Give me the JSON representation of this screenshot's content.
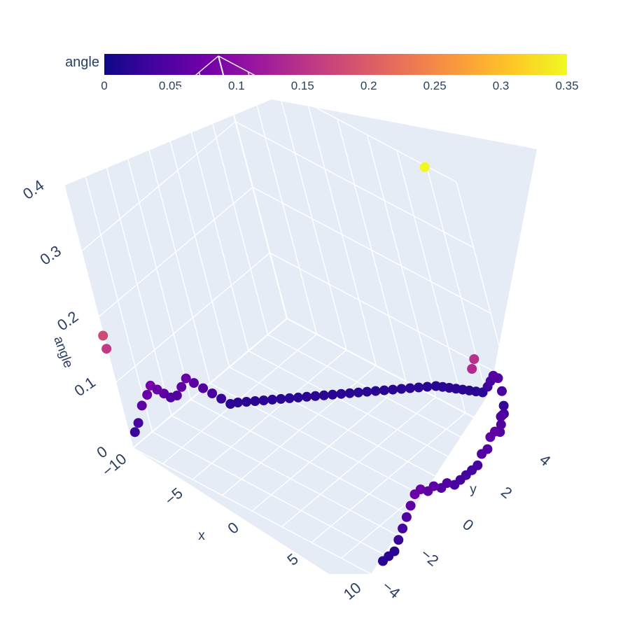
{
  "chart_data": {
    "type": "scatter3d",
    "colorbar": {
      "title": "angle",
      "range": [
        0,
        0.35
      ],
      "ticks": [
        "0",
        "0.05",
        "0.1",
        "0.15",
        "0.2",
        "0.25",
        "0.3",
        "0.35"
      ],
      "colorscale": "plasma"
    },
    "axes": {
      "x": {
        "title": "x",
        "ticks": [
          "−10",
          "−5",
          "0",
          "5",
          "10"
        ]
      },
      "y": {
        "title": "y",
        "ticks": [
          "−4",
          "−2",
          "0",
          "2",
          "4"
        ]
      },
      "z": {
        "title": "angle",
        "ticks": [
          "0",
          "0.1",
          "0.2",
          "0.3",
          "0.4"
        ]
      }
    },
    "colors": {
      "scene_bg": "#e5ecf6",
      "grid": "#ffffff",
      "text": "#2a3f5f"
    },
    "series": [
      {
        "segment": "horizontal-track",
        "points": [
          [
            -9.4,
            -4.0,
            0.03
          ],
          [
            -9.3,
            -3.8,
            0.04
          ],
          [
            -9.2,
            -3.5,
            0.06
          ],
          [
            -9.1,
            -3.2,
            0.07
          ],
          [
            -9.0,
            -3.0,
            0.08
          ],
          [
            -8.9,
            -2.8,
            0.07
          ],
          [
            -8.8,
            -2.6,
            0.06
          ],
          [
            -8.7,
            -2.4,
            0.05
          ],
          [
            -8.5,
            -2.2,
            0.05
          ],
          [
            -8.3,
            -2.0,
            0.06
          ],
          [
            -8.1,
            -1.8,
            0.07
          ],
          [
            -7.9,
            -1.6,
            0.06
          ],
          [
            -7.6,
            -1.4,
            0.05
          ],
          [
            -7.3,
            -1.2,
            0.04
          ],
          [
            -7.0,
            -1.0,
            0.03
          ],
          [
            -6.7,
            -0.8,
            0.02
          ],
          [
            -6.4,
            -0.6,
            0.02
          ],
          [
            -6.0,
            -0.4,
            0.02
          ],
          [
            -5.6,
            -0.2,
            0.02
          ],
          [
            -5.2,
            0.0,
            0.02
          ],
          [
            -4.8,
            0.2,
            0.02
          ],
          [
            -4.4,
            0.4,
            0.02
          ],
          [
            -4.0,
            0.6,
            0.02
          ],
          [
            -3.6,
            0.8,
            0.02
          ],
          [
            -3.2,
            1.0,
            0.02
          ],
          [
            -2.8,
            1.2,
            0.02
          ],
          [
            -2.4,
            1.4,
            0.02
          ],
          [
            -2.0,
            1.6,
            0.02
          ],
          [
            -1.6,
            1.8,
            0.02
          ],
          [
            -1.2,
            2.0,
            0.02
          ],
          [
            -0.8,
            2.2,
            0.02
          ],
          [
            -0.4,
            2.4,
            0.02
          ],
          [
            0.0,
            2.6,
            0.02
          ],
          [
            0.4,
            2.8,
            0.02
          ],
          [
            0.8,
            3.0,
            0.02
          ],
          [
            1.2,
            3.2,
            0.02
          ],
          [
            1.6,
            3.4,
            0.02
          ],
          [
            2.0,
            3.6,
            0.02
          ],
          [
            2.4,
            3.8,
            0.02
          ],
          [
            2.8,
            4.0,
            0.02
          ],
          [
            3.2,
            4.1,
            0.02
          ],
          [
            3.6,
            4.2,
            0.02
          ],
          [
            4.0,
            4.3,
            0.02
          ],
          [
            4.4,
            4.4,
            0.02
          ],
          [
            4.8,
            4.5,
            0.02
          ],
          [
            5.2,
            4.6,
            0.02
          ],
          [
            5.6,
            4.7,
            0.02
          ],
          [
            6.0,
            4.8,
            0.03
          ],
          [
            6.3,
            4.85,
            0.04
          ],
          [
            6.6,
            4.9,
            0.05
          ]
        ]
      },
      {
        "segment": "corner-and-vertical",
        "points": [
          [
            7.0,
            4.9,
            0.05
          ],
          [
            7.5,
            4.7,
            0.04
          ],
          [
            8.0,
            4.4,
            0.03
          ],
          [
            8.5,
            4.1,
            0.03
          ],
          [
            9.0,
            3.8,
            0.04
          ],
          [
            9.5,
            3.5,
            0.05
          ],
          [
            10.0,
            3.2,
            0.05
          ],
          [
            10.4,
            2.9,
            0.05
          ],
          [
            10.6,
            2.6,
            0.06
          ],
          [
            10.7,
            2.3,
            0.06
          ],
          [
            10.8,
            2.0,
            0.05
          ],
          [
            10.8,
            1.7,
            0.05
          ],
          [
            10.8,
            1.4,
            0.04
          ],
          [
            10.8,
            1.1,
            0.04
          ],
          [
            10.8,
            0.8,
            0.04
          ],
          [
            10.8,
            0.5,
            0.04
          ],
          [
            10.8,
            0.2,
            0.04
          ],
          [
            10.8,
            -0.1,
            0.05
          ],
          [
            10.8,
            -0.4,
            0.05
          ],
          [
            10.8,
            -0.7,
            0.06
          ],
          [
            10.8,
            -1.0,
            0.06
          ],
          [
            10.8,
            -1.3,
            0.07
          ],
          [
            10.8,
            -1.6,
            0.07
          ],
          [
            10.8,
            -1.9,
            0.06
          ],
          [
            10.8,
            -2.2,
            0.05
          ],
          [
            10.8,
            -2.5,
            0.04
          ],
          [
            10.8,
            -2.8,
            0.03
          ],
          [
            10.8,
            -3.1,
            0.02
          ],
          [
            10.8,
            -3.4,
            0.02
          ],
          [
            10.8,
            -3.7,
            0.02
          ]
        ]
      },
      {
        "segment": "outliers",
        "points": [
          [
            -9.6,
            -4.2,
            0.16
          ],
          [
            -9.6,
            -4.2,
            0.18
          ],
          [
            9.5,
            3.0,
            0.15
          ],
          [
            9.5,
            2.8,
            0.14
          ],
          [
            5.0,
            5.0,
            0.35
          ]
        ]
      }
    ]
  }
}
